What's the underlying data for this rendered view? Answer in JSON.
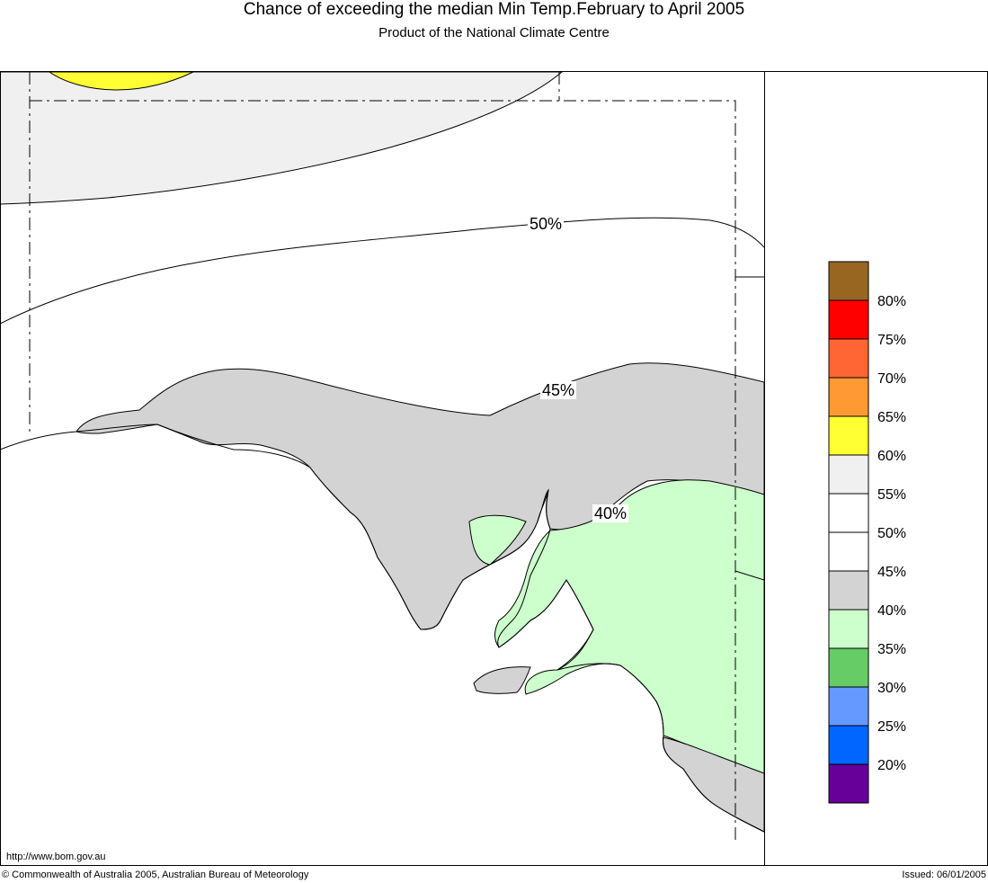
{
  "header": {
    "title": "Chance of exceeding the median Min Temp.February to April 2005",
    "subtitle": "Product of the National Climate Centre"
  },
  "map": {
    "contour_labels": [
      "50%",
      "45%",
      "40%"
    ],
    "regions": [
      {
        "name": "chance-60-65",
        "color": "#ffff33"
      },
      {
        "name": "chance-55-60",
        "color": "#f0f0f0"
      },
      {
        "name": "chance-50-55",
        "color": "#ffffff"
      },
      {
        "name": "chance-45-50",
        "color": "#ffffff"
      },
      {
        "name": "chance-40-45",
        "color": "#d3d3d3"
      },
      {
        "name": "chance-35-40",
        "color": "#ccffcc"
      }
    ]
  },
  "legend": {
    "swatches": [
      {
        "color": "#996622"
      },
      {
        "color": "#ff0000"
      },
      {
        "color": "#ff6633"
      },
      {
        "color": "#ff9933"
      },
      {
        "color": "#ffff33"
      },
      {
        "color": "#f0f0f0"
      },
      {
        "color": "#ffffff"
      },
      {
        "color": "#ffffff"
      },
      {
        "color": "#d3d3d3"
      },
      {
        "color": "#ccffcc"
      },
      {
        "color": "#66cc66"
      },
      {
        "color": "#6699ff"
      },
      {
        "color": "#0066ff"
      },
      {
        "color": "#660099"
      }
    ],
    "labels": [
      "80%",
      "75%",
      "70%",
      "65%",
      "60%",
      "55%",
      "50%",
      "45%",
      "40%",
      "35%",
      "30%",
      "25%",
      "20%"
    ]
  },
  "footer": {
    "url": "http://www.bom.gov.au",
    "copyright": "© Commonwealth of Australia 2005, Australian Bureau of Meteorology",
    "issued": "Issued: 06/01/2005"
  }
}
